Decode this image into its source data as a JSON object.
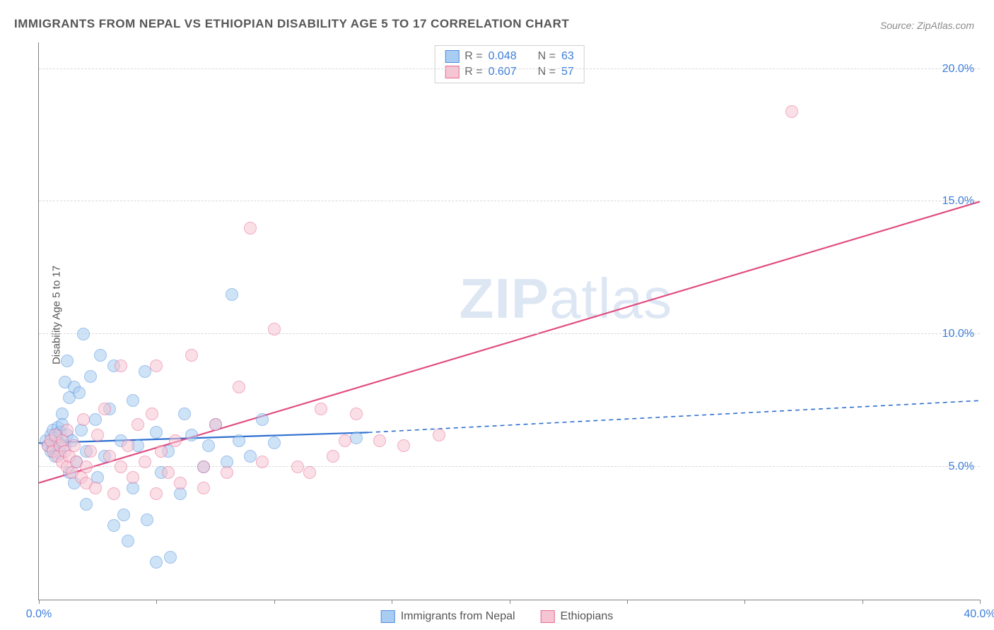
{
  "title": "IMMIGRANTS FROM NEPAL VS ETHIOPIAN DISABILITY AGE 5 TO 17 CORRELATION CHART",
  "source": "Source: ZipAtlas.com",
  "ylabel": "Disability Age 5 to 17",
  "watermark_a": "ZIP",
  "watermark_b": "atlas",
  "chart": {
    "type": "scatter-with-trend",
    "xlim": [
      0,
      40
    ],
    "ylim": [
      0,
      21
    ],
    "xticks": [
      0,
      5,
      10,
      15,
      20,
      25,
      30,
      35,
      40
    ],
    "xtick_labels": {
      "0": "0.0%",
      "40": "40.0%"
    },
    "yticks": [
      5,
      10,
      15,
      20
    ],
    "ytick_labels": {
      "5": "5.0%",
      "10": "10.0%",
      "15": "15.0%",
      "20": "20.0%"
    },
    "grid_color": "#d8d8d8",
    "axis_color": "#808080",
    "background_color": "#ffffff",
    "point_radius": 9,
    "point_opacity": 0.55,
    "series": [
      {
        "id": "nepal",
        "label": "Immigrants from Nepal",
        "fill": "#a9cdf2",
        "stroke": "#4f8fdc",
        "line_color": "#2d6fd0",
        "R": "0.048",
        "N": "63",
        "trend": {
          "x1": 0,
          "y1": 5.9,
          "x2_solid": 14,
          "y2_solid": 6.3,
          "x2": 40,
          "y2": 7.5
        },
        "points": [
          [
            0.3,
            6.0
          ],
          [
            0.4,
            5.8
          ],
          [
            0.5,
            6.2
          ],
          [
            0.5,
            5.6
          ],
          [
            0.6,
            6.4
          ],
          [
            0.6,
            5.7
          ],
          [
            0.7,
            6.1
          ],
          [
            0.7,
            5.4
          ],
          [
            0.8,
            6.5
          ],
          [
            0.8,
            5.9
          ],
          [
            0.9,
            6.3
          ],
          [
            0.9,
            5.5
          ],
          [
            1.0,
            7.0
          ],
          [
            1.0,
            6.6
          ],
          [
            1.1,
            5.8
          ],
          [
            1.1,
            8.2
          ],
          [
            1.2,
            6.2
          ],
          [
            1.2,
            9.0
          ],
          [
            1.3,
            7.6
          ],
          [
            1.3,
            4.8
          ],
          [
            1.4,
            6.0
          ],
          [
            1.5,
            8.0
          ],
          [
            1.5,
            4.4
          ],
          [
            1.6,
            5.2
          ],
          [
            1.7,
            7.8
          ],
          [
            1.8,
            6.4
          ],
          [
            1.9,
            10.0
          ],
          [
            2.0,
            5.6
          ],
          [
            2.0,
            3.6
          ],
          [
            2.2,
            8.4
          ],
          [
            2.4,
            6.8
          ],
          [
            2.5,
            4.6
          ],
          [
            2.6,
            9.2
          ],
          [
            2.8,
            5.4
          ],
          [
            3.0,
            7.2
          ],
          [
            3.2,
            2.8
          ],
          [
            3.2,
            8.8
          ],
          [
            3.5,
            6.0
          ],
          [
            3.6,
            3.2
          ],
          [
            3.8,
            2.2
          ],
          [
            4.0,
            7.5
          ],
          [
            4.0,
            4.2
          ],
          [
            4.2,
            5.8
          ],
          [
            4.5,
            8.6
          ],
          [
            4.6,
            3.0
          ],
          [
            5.0,
            1.4
          ],
          [
            5.0,
            6.3
          ],
          [
            5.2,
            4.8
          ],
          [
            5.5,
            5.6
          ],
          [
            5.6,
            1.6
          ],
          [
            6.0,
            4.0
          ],
          [
            6.2,
            7.0
          ],
          [
            6.5,
            6.2
          ],
          [
            7.0,
            5.0
          ],
          [
            7.2,
            5.8
          ],
          [
            7.5,
            6.6
          ],
          [
            8.0,
            5.2
          ],
          [
            8.2,
            11.5
          ],
          [
            8.5,
            6.0
          ],
          [
            9.0,
            5.4
          ],
          [
            9.5,
            6.8
          ],
          [
            10.0,
            5.9
          ],
          [
            13.5,
            6.1
          ]
        ]
      },
      {
        "id": "ethiopian",
        "label": "Ethiopians",
        "fill": "#f6c5d3",
        "stroke": "#e86a94",
        "line_color": "#e14b80",
        "R": "0.607",
        "N": "57",
        "trend": {
          "x1": 0,
          "y1": 4.4,
          "x2_solid": 40,
          "y2_solid": 15.0,
          "x2": 40,
          "y2": 15.0
        },
        "points": [
          [
            0.4,
            5.8
          ],
          [
            0.5,
            6.0
          ],
          [
            0.6,
            5.6
          ],
          [
            0.7,
            6.2
          ],
          [
            0.8,
            5.4
          ],
          [
            0.9,
            5.8
          ],
          [
            1.0,
            6.0
          ],
          [
            1.0,
            5.2
          ],
          [
            1.1,
            5.6
          ],
          [
            1.2,
            5.0
          ],
          [
            1.2,
            6.4
          ],
          [
            1.3,
            5.4
          ],
          [
            1.4,
            4.8
          ],
          [
            1.5,
            5.8
          ],
          [
            1.6,
            5.2
          ],
          [
            1.8,
            4.6
          ],
          [
            1.9,
            6.8
          ],
          [
            2.0,
            5.0
          ],
          [
            2.0,
            4.4
          ],
          [
            2.2,
            5.6
          ],
          [
            2.4,
            4.2
          ],
          [
            2.5,
            6.2
          ],
          [
            2.8,
            7.2
          ],
          [
            3.0,
            5.4
          ],
          [
            3.2,
            4.0
          ],
          [
            3.5,
            8.8
          ],
          [
            3.5,
            5.0
          ],
          [
            3.8,
            5.8
          ],
          [
            4.0,
            4.6
          ],
          [
            4.2,
            6.6
          ],
          [
            4.5,
            5.2
          ],
          [
            4.8,
            7.0
          ],
          [
            5.0,
            4.0
          ],
          [
            5.0,
            8.8
          ],
          [
            5.2,
            5.6
          ],
          [
            5.5,
            4.8
          ],
          [
            5.8,
            6.0
          ],
          [
            6.0,
            4.4
          ],
          [
            6.5,
            9.2
          ],
          [
            7.0,
            5.0
          ],
          [
            7.0,
            4.2
          ],
          [
            7.5,
            6.6
          ],
          [
            8.0,
            4.8
          ],
          [
            8.5,
            8.0
          ],
          [
            9.0,
            14.0
          ],
          [
            9.5,
            5.2
          ],
          [
            10.0,
            10.2
          ],
          [
            11.0,
            5.0
          ],
          [
            11.5,
            4.8
          ],
          [
            12.0,
            7.2
          ],
          [
            12.5,
            5.4
          ],
          [
            13.0,
            6.0
          ],
          [
            13.5,
            7.0
          ],
          [
            14.5,
            6.0
          ],
          [
            15.5,
            5.8
          ],
          [
            17.0,
            6.2
          ],
          [
            32.0,
            18.4
          ]
        ]
      }
    ]
  },
  "legend_top": {
    "R_label": "R =",
    "N_label": "N ="
  }
}
